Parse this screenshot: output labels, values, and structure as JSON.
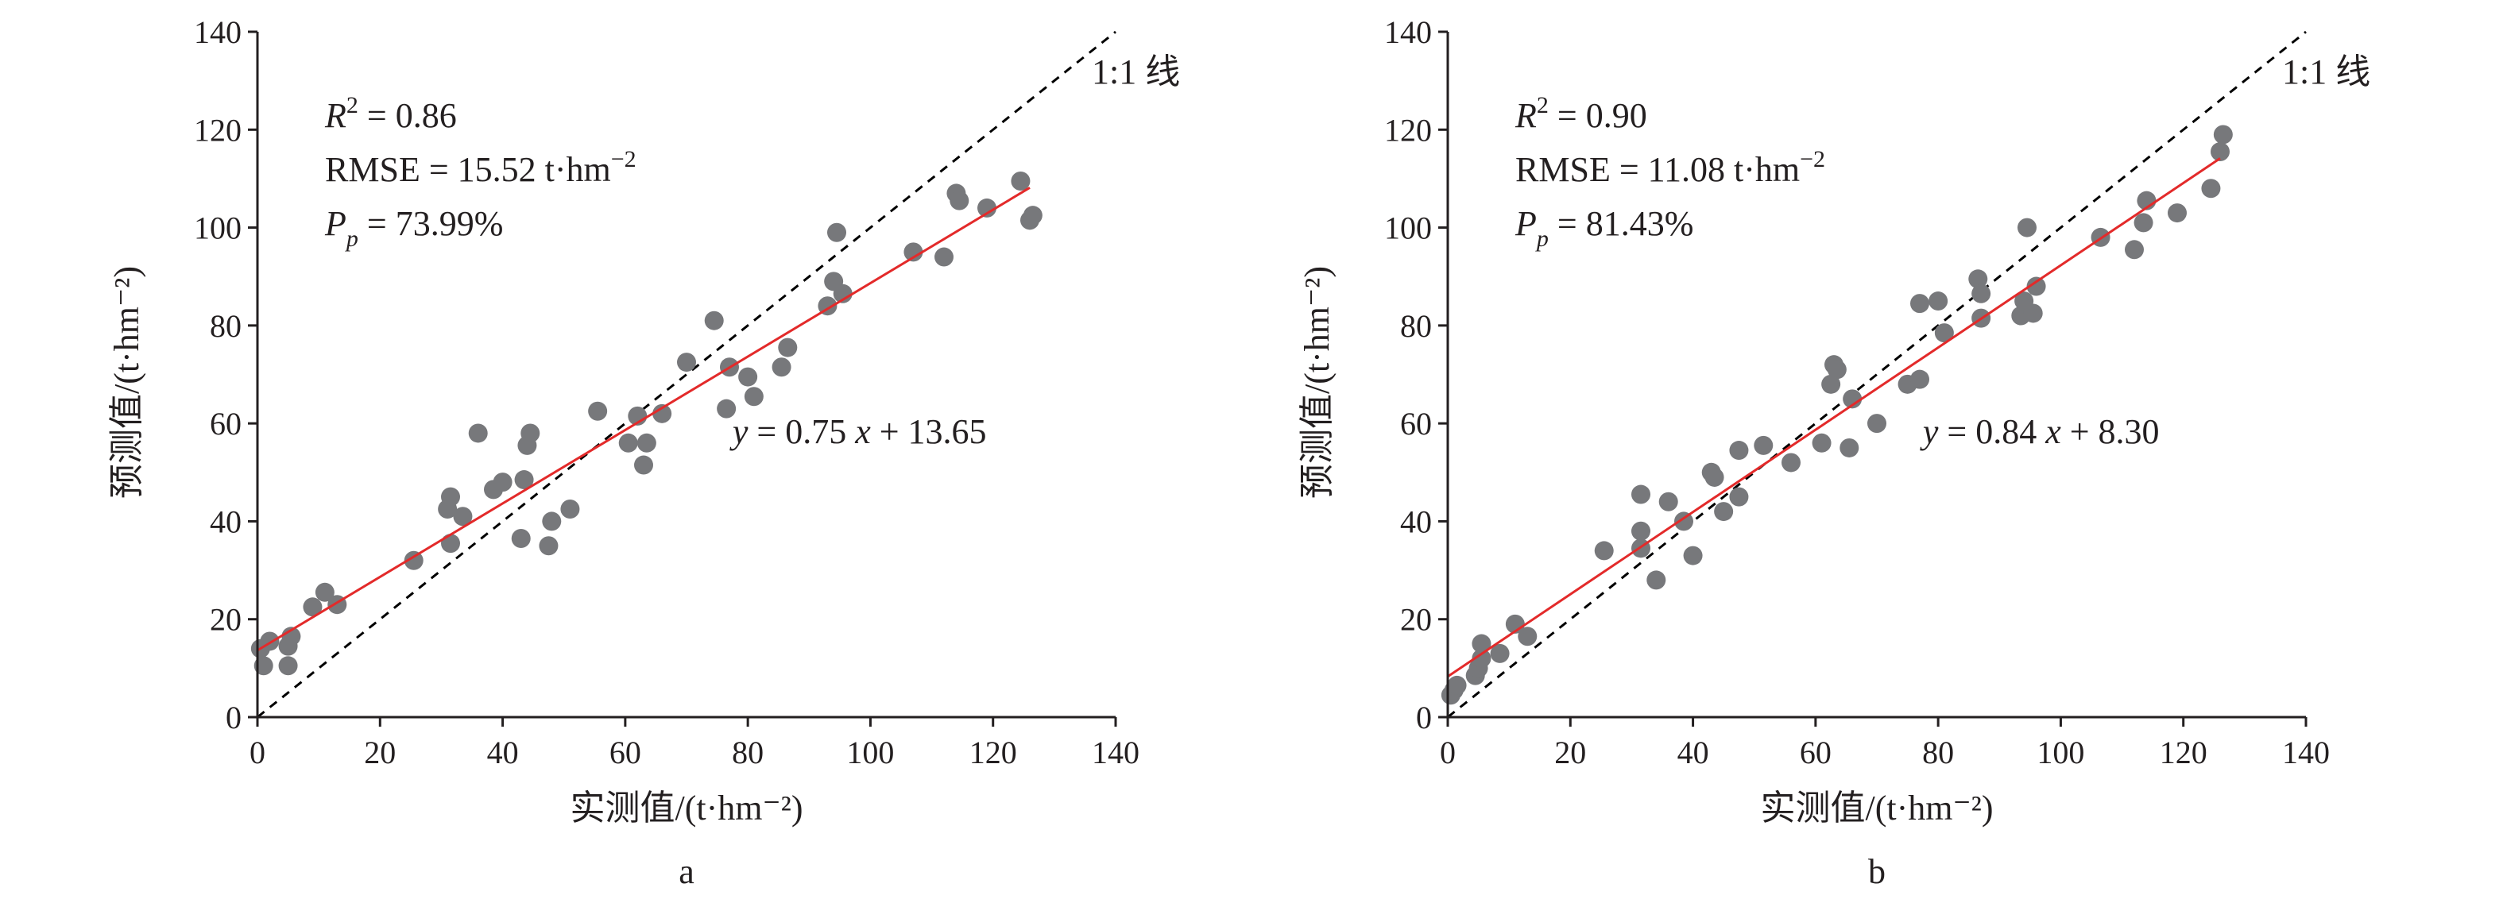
{
  "chart_data": [
    {
      "type": "scatter",
      "panel_label": "a",
      "xlabel": "实测值/(t·hm⁻²)",
      "ylabel": "预测值/(t·hm⁻²)",
      "xlim": [
        0,
        140
      ],
      "ylim": [
        0,
        140
      ],
      "xticks": [
        "0",
        "20",
        "40",
        "60",
        "80",
        "100",
        "120",
        "140"
      ],
      "yticks": [
        "0",
        "20",
        "40",
        "60",
        "80",
        "100",
        "120",
        "140"
      ],
      "grid": false,
      "stats": {
        "r2_label": "R",
        "r2_sup": "2",
        "r2_value": " = 0.86",
        "rmse_prefix": "RMSE = 15.52 t·hm",
        "rmse_sup": "−2",
        "pp_label": "P",
        "pp_sub": "p",
        "pp_value": " = 73.99%"
      },
      "one_to_one_label": "1:1 线",
      "fit": {
        "slope": 0.75,
        "intercept": 13.65,
        "x_range": [
          0,
          126
        ]
      },
      "fit_parts": {
        "y": "y",
        "middle": " = 0.75 ",
        "x": "x",
        "end": " + 13.65"
      },
      "points": [
        [
          0.5,
          14
        ],
        [
          1,
          10.5
        ],
        [
          2,
          15.5
        ],
        [
          5,
          10.5
        ],
        [
          5,
          14.5
        ],
        [
          5.5,
          16.5
        ],
        [
          9,
          22.5
        ],
        [
          11,
          25.5
        ],
        [
          13,
          23
        ],
        [
          25.5,
          32
        ],
        [
          31,
          42.5
        ],
        [
          31.5,
          45
        ],
        [
          31.5,
          35.5
        ],
        [
          33.5,
          41
        ],
        [
          36,
          58
        ],
        [
          38.5,
          46.5
        ],
        [
          40,
          48
        ],
        [
          43,
          36.5
        ],
        [
          43.5,
          48.5
        ],
        [
          44,
          55.5
        ],
        [
          44.5,
          58
        ],
        [
          47.5,
          35
        ],
        [
          48,
          40
        ],
        [
          51,
          42.5
        ],
        [
          55.5,
          62.5
        ],
        [
          60.5,
          56
        ],
        [
          62,
          61.5
        ],
        [
          63,
          51.5
        ],
        [
          63.5,
          56
        ],
        [
          66,
          62
        ],
        [
          70,
          72.5
        ],
        [
          74.5,
          81
        ],
        [
          76.5,
          63
        ],
        [
          77,
          71.5
        ],
        [
          80,
          69.5
        ],
        [
          81,
          65.5
        ],
        [
          85.5,
          71.5
        ],
        [
          86.5,
          75.5
        ],
        [
          93,
          84
        ],
        [
          94,
          89
        ],
        [
          94.5,
          99
        ],
        [
          95.5,
          86.5
        ],
        [
          107,
          95
        ],
        [
          112,
          94
        ],
        [
          114,
          107
        ],
        [
          114.5,
          105.5
        ],
        [
          119,
          104
        ],
        [
          124.5,
          109.5
        ],
        [
          126,
          101.5
        ],
        [
          126.5,
          102.5
        ]
      ]
    },
    {
      "type": "scatter",
      "panel_label": "b",
      "xlabel": "实测值/(t·hm⁻²)",
      "ylabel": "预测值/(t·hm⁻²)",
      "xlim": [
        0,
        140
      ],
      "ylim": [
        0,
        140
      ],
      "xticks": [
        "0",
        "20",
        "40",
        "60",
        "80",
        "100",
        "120",
        "140"
      ],
      "yticks": [
        "0",
        "20",
        "40",
        "60",
        "80",
        "100",
        "120",
        "140"
      ],
      "grid": false,
      "stats": {
        "r2_label": "R",
        "r2_sup": "2",
        "r2_value": " = 0.90",
        "rmse_prefix": "RMSE = 11.08 t·hm",
        "rmse_sup": "−2",
        "pp_label": "P",
        "pp_sub": "p",
        "pp_value": " = 81.43%"
      },
      "one_to_one_label": "1:1 线",
      "fit": {
        "slope": 0.84,
        "intercept": 8.3,
        "x_range": [
          0,
          126
        ]
      },
      "fit_parts": {
        "y": "y",
        "middle": " = 0.84 ",
        "x": "x",
        "end": " + 8.30"
      },
      "points": [
        [
          0.5,
          4.5
        ],
        [
          1,
          5.5
        ],
        [
          1.5,
          6.5
        ],
        [
          4.5,
          8.5
        ],
        [
          5,
          10
        ],
        [
          5.5,
          12
        ],
        [
          5.5,
          15
        ],
        [
          8.5,
          13
        ],
        [
          11,
          19
        ],
        [
          13,
          16.5
        ],
        [
          25.5,
          34
        ],
        [
          31.5,
          45.5
        ],
        [
          31.5,
          38
        ],
        [
          31.5,
          34.5
        ],
        [
          34,
          28
        ],
        [
          36,
          44
        ],
        [
          38.5,
          40
        ],
        [
          40,
          33
        ],
        [
          43,
          50
        ],
        [
          43.5,
          49
        ],
        [
          45,
          42
        ],
        [
          47.5,
          45
        ],
        [
          47.5,
          54.5
        ],
        [
          51.5,
          55.5
        ],
        [
          56,
          52
        ],
        [
          61,
          56
        ],
        [
          62.5,
          68
        ],
        [
          63,
          72
        ],
        [
          63.5,
          71
        ],
        [
          65.5,
          55
        ],
        [
          66,
          65
        ],
        [
          70,
          60
        ],
        [
          75,
          68
        ],
        [
          77,
          69
        ],
        [
          77,
          84.5
        ],
        [
          80,
          85
        ],
        [
          81,
          78.5
        ],
        [
          86.5,
          89.5
        ],
        [
          87,
          81.5
        ],
        [
          87,
          86.5
        ],
        [
          93.5,
          82
        ],
        [
          94,
          85
        ],
        [
          94.5,
          100
        ],
        [
          95.5,
          82.5
        ],
        [
          96,
          88
        ],
        [
          106.5,
          98
        ],
        [
          112,
          95.5
        ],
        [
          113.5,
          101
        ],
        [
          114,
          105.5
        ],
        [
          119,
          103
        ],
        [
          124.5,
          108
        ],
        [
          126,
          115.5
        ],
        [
          126.5,
          119
        ]
      ]
    }
  ]
}
